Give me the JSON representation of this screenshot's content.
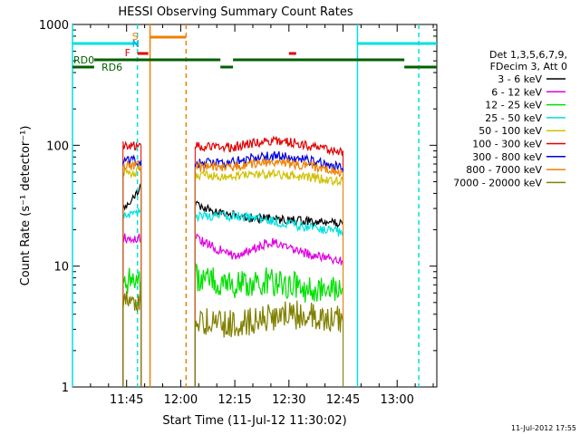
{
  "chart_data": {
    "type": "line",
    "title": "HESSI Observing Summary Count Rates",
    "xlabel": "Start Time (11-Jul-12 11:30:02)",
    "ylabel": "Count Rate (s⁻¹ detector⁻¹)",
    "footer": "11-Jul-2012 17:55",
    "y_scale": "log",
    "ylim": [
      1,
      1000
    ],
    "xlim_min": [
      0,
      101
    ],
    "x_ticks": [
      {
        "min": 15,
        "label": "11:45"
      },
      {
        "min": 30,
        "label": "12:00"
      },
      {
        "min": 45,
        "label": "12:15"
      },
      {
        "min": 60,
        "label": "12:30"
      },
      {
        "min": 75,
        "label": "12:45"
      },
      {
        "min": 90,
        "label": "13:00"
      }
    ],
    "y_ticks": [
      {
        "value": 1,
        "label": "1"
      },
      {
        "value": 10,
        "label": "10"
      },
      {
        "value": 100,
        "label": "100"
      },
      {
        "value": 1000,
        "label": "1000"
      }
    ],
    "legend": {
      "header_lines": [
        "Det 1,3,5,6,7,9,",
        "FDecim 3, Att 0"
      ],
      "placement": "right"
    },
    "series": [
      {
        "name": "3 - 6 keV",
        "color": "#000000",
        "segments": [
          [
            [
              14,
              30
            ],
            [
              19,
              45
            ]
          ],
          [
            [
              34,
              32
            ],
            [
              43,
              27
            ],
            [
              50,
              25
            ],
            [
              60,
              24
            ],
            [
              70,
              23
            ],
            [
              75,
              22
            ]
          ]
        ]
      },
      {
        "name": "6 - 12 keV",
        "color": "#e000e0",
        "segments": [
          [
            [
              14,
              17
            ],
            [
              19,
              17
            ]
          ],
          [
            [
              34,
              17
            ],
            [
              40,
              14
            ],
            [
              45,
              12
            ],
            [
              55,
              16
            ],
            [
              60,
              14
            ],
            [
              68,
              12
            ],
            [
              75,
              11
            ]
          ]
        ]
      },
      {
        "name": "12 - 25 keV",
        "color": "#00e000",
        "segments": [
          [
            [
              14,
              7.5
            ],
            [
              19,
              7.5
            ]
          ],
          [
            [
              34,
              8
            ],
            [
              45,
              7
            ],
            [
              55,
              7.5
            ],
            [
              65,
              6.5
            ],
            [
              75,
              6.5
            ]
          ]
        ]
      },
      {
        "name": "25 - 50 keV",
        "color": "#00e0e0",
        "segments": [
          [
            [
              14,
              27
            ],
            [
              19,
              28
            ]
          ],
          [
            [
              34,
              26
            ],
            [
              45,
              26
            ],
            [
              55,
              24
            ],
            [
              65,
              21
            ],
            [
              75,
              19
            ]
          ]
        ]
      },
      {
        "name": "50 - 100 keV",
        "color": "#d0c000",
        "segments": [
          [
            [
              14,
              60
            ],
            [
              19,
              60
            ]
          ],
          [
            [
              34,
              56
            ],
            [
              45,
              56
            ],
            [
              55,
              58
            ],
            [
              65,
              55
            ],
            [
              75,
              50
            ]
          ]
        ]
      },
      {
        "name": "100 - 300 keV",
        "color": "#e00000",
        "segments": [
          [
            [
              14,
              100
            ],
            [
              19,
              100
            ]
          ],
          [
            [
              34,
              97
            ],
            [
              44,
              96
            ],
            [
              50,
              105
            ],
            [
              57,
              110
            ],
            [
              65,
              100
            ],
            [
              75,
              90
            ]
          ]
        ]
      },
      {
        "name": "300 - 800 keV",
        "color": "#0000e0",
        "segments": [
          [
            [
              14,
              73
            ],
            [
              19,
              75
            ]
          ],
          [
            [
              34,
              71
            ],
            [
              44,
              72
            ],
            [
              50,
              79
            ],
            [
              57,
              82
            ],
            [
              65,
              75
            ],
            [
              75,
              65
            ]
          ]
        ]
      },
      {
        "name": "800 - 7000 keV",
        "color": "#f08000",
        "segments": [
          [
            [
              14,
              68
            ],
            [
              19,
              68
            ]
          ],
          [
            [
              34,
              66
            ],
            [
              44,
              66
            ],
            [
              50,
              71
            ],
            [
              57,
              73
            ],
            [
              65,
              68
            ],
            [
              75,
              60
            ]
          ]
        ]
      },
      {
        "name": "7000 - 20000 keV",
        "color": "#808000",
        "segments": [
          [
            [
              14,
              5
            ],
            [
              19,
              5
            ]
          ],
          [
            [
              34,
              3.5
            ],
            [
              45,
              3.3
            ],
            [
              55,
              3.8
            ],
            [
              65,
              4
            ],
            [
              75,
              3.5
            ]
          ]
        ]
      }
    ],
    "annotations": {
      "flag_labels": [
        "S",
        "N",
        "F",
        "RD0",
        "RD6"
      ],
      "vertical_lines": [
        {
          "min": 0,
          "color": "#00e0e0",
          "style": "solid"
        },
        {
          "min": 18,
          "color": "#00e0e0",
          "style": "dashed"
        },
        {
          "min": 21.5,
          "color": "#f08000",
          "style": "solid"
        },
        {
          "min": 31.5,
          "color": "#f08000",
          "style": "dashed"
        },
        {
          "min": 79,
          "color": "#00e0e0",
          "style": "solid"
        },
        {
          "min": 96,
          "color": "#00e0e0",
          "style": "dashed"
        }
      ]
    }
  }
}
